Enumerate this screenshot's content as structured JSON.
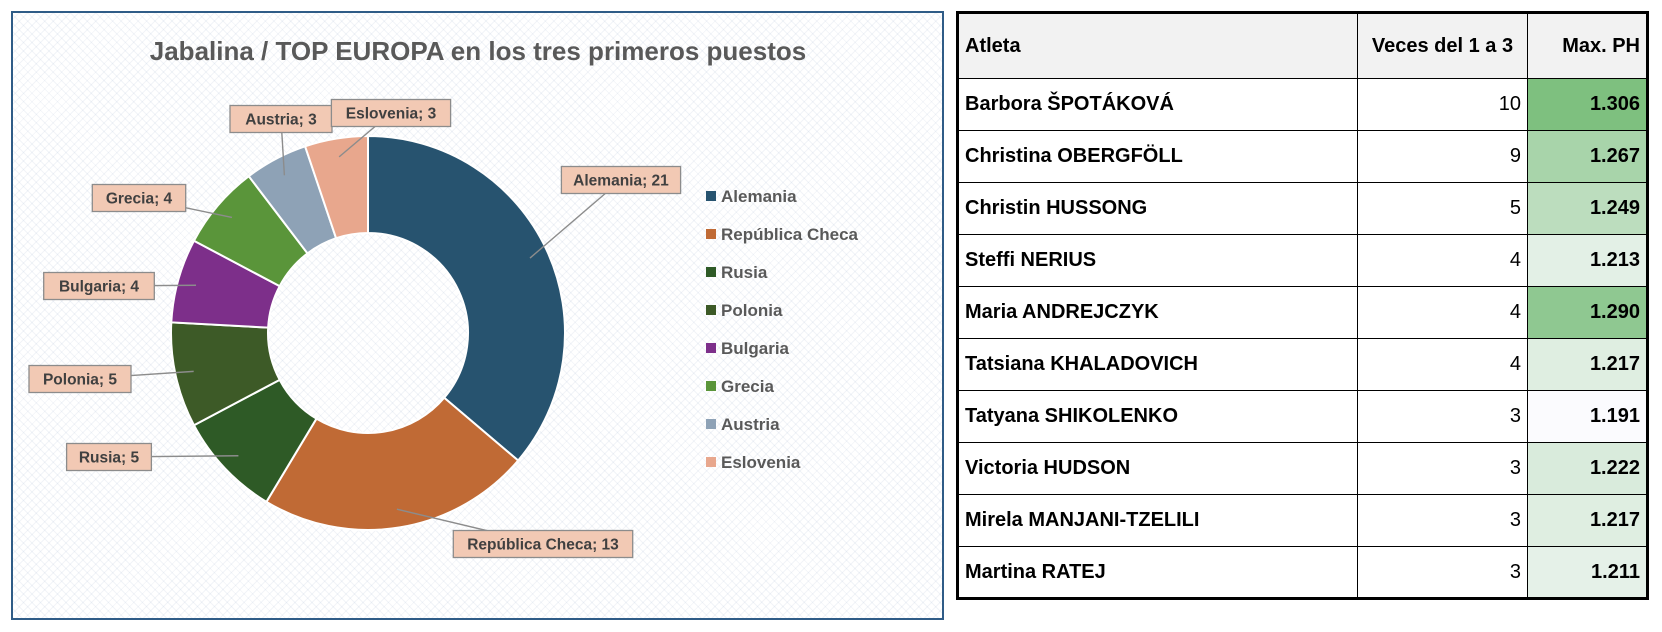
{
  "colors": {
    "Alemania": "#27536f",
    "República Checa": "#c06a35",
    "Rusia": "#2e5a26",
    "Polonia": "#3d5a27",
    "Bulgaria": "#7d2f8a",
    "Grecia": "#5a953a",
    "Austria": "#8ea2b6",
    "Eslovenia": "#e8a78d",
    "scale_high": "#7ec07f",
    "scale_low": "#fbfbfe"
  },
  "chart_data": {
    "type": "pie",
    "donut": true,
    "title": "Jabalina  / TOP   EUROPA en los tres primeros puestos",
    "categories": [
      "Alemania",
      "República Checa",
      "Rusia",
      "Polonia",
      "Bulgaria",
      "Grecia",
      "Austria",
      "Eslovenia"
    ],
    "values": [
      21,
      13,
      5,
      5,
      4,
      4,
      3,
      3
    ],
    "data_labels": [
      "Alemania; 21",
      "República Checa; 13",
      "Rusia; 5",
      "Polonia; 5",
      "Bulgaria; 4",
      "Grecia; 4",
      "Austria; 3",
      "Eslovenia; 3"
    ],
    "legend": [
      "Alemania",
      "República Checa",
      "Rusia",
      "Polonia",
      "Bulgaria",
      "Grecia",
      "Austria",
      "Eslovenia"
    ],
    "legend_position": "right"
  },
  "table": {
    "headers": [
      "Atleta",
      "Veces del 1 a 3",
      "Max. PH"
    ],
    "rows": [
      {
        "athlete": "Barbora ŠPOTÁKOVÁ",
        "times": "10",
        "max": "1.306"
      },
      {
        "athlete": "Christina OBERGFÖLL",
        "times": "9",
        "max": "1.267"
      },
      {
        "athlete": "Christin HUSSONG",
        "times": "5",
        "max": "1.249"
      },
      {
        "athlete": "Steffi NERIUS",
        "times": "4",
        "max": "1.213"
      },
      {
        "athlete": "Maria ANDREJCZYK",
        "times": "4",
        "max": "1.290"
      },
      {
        "athlete": "Tatsiana KHALADOVICH",
        "times": "4",
        "max": "1.217"
      },
      {
        "athlete": "Tatyana SHIKOLENKO",
        "times": "3",
        "max": "1.191"
      },
      {
        "athlete": "Victoria HUDSON",
        "times": "3",
        "max": "1.222"
      },
      {
        "athlete": "Mirela MANJANI-TZELILI",
        "times": "3",
        "max": "1.217"
      },
      {
        "athlete": "Martina RATEJ",
        "times": "3",
        "max": "1.211"
      }
    ]
  }
}
